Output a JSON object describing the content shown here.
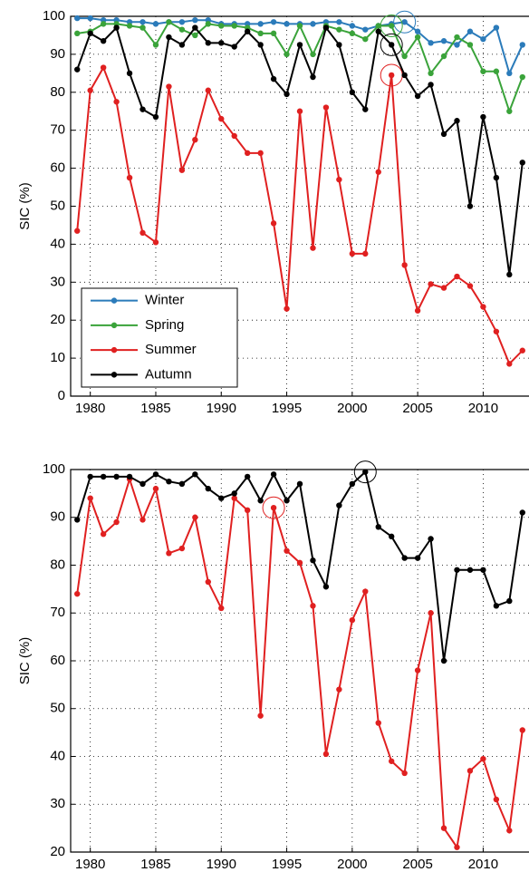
{
  "chart_data": [
    {
      "type": "line",
      "ylabel": "SIC (%)",
      "x": [
        1979,
        1980,
        1981,
        1982,
        1983,
        1984,
        1985,
        1986,
        1987,
        1988,
        1989,
        1990,
        1991,
        1992,
        1993,
        1994,
        1995,
        1996,
        1997,
        1998,
        1999,
        2000,
        2001,
        2002,
        2003,
        2004,
        2005,
        2006,
        2007,
        2008,
        2009,
        2010,
        2011,
        2012,
        2013
      ],
      "xlim": [
        1978.5,
        2013.5
      ],
      "xticks": [
        1980,
        1985,
        1990,
        1995,
        2000,
        2005,
        2010
      ],
      "ylim": [
        0,
        100
      ],
      "yticks": [
        0,
        10,
        20,
        30,
        40,
        50,
        60,
        70,
        80,
        90,
        100
      ],
      "grid": true,
      "legend": "lower left",
      "series": [
        {
          "name": "Winter",
          "color": "#2b7bba",
          "highlight": 2004,
          "values": [
            99.5,
            99.5,
            99,
            99,
            98.5,
            98.5,
            98,
            98.5,
            98.5,
            99,
            99,
            98,
            98,
            98,
            98,
            98.5,
            98,
            98,
            98,
            98.5,
            98.5,
            97.5,
            96.5,
            97.5,
            98,
            98.5,
            96,
            93,
            93.5,
            92.5,
            96,
            94,
            97,
            85,
            92.5
          ]
        },
        {
          "name": "Spring",
          "color": "#3aa33a",
          "highlight": 2003,
          "values": [
            95.5,
            96,
            98,
            98,
            97.5,
            97,
            92.5,
            98.5,
            96.5,
            95,
            98,
            97.5,
            97.5,
            97,
            95.5,
            95.5,
            90,
            97.5,
            90,
            97.5,
            96.5,
            95.5,
            94,
            97.5,
            97.5,
            89.5,
            94.5,
            85,
            89.5,
            94.5,
            92.5,
            85.5,
            85.5,
            75,
            84
          ]
        },
        {
          "name": "Summer",
          "color": "#e02020",
          "highlight": 2003,
          "values": [
            43.5,
            80.5,
            86.5,
            77.5,
            57.5,
            43,
            40.5,
            81.5,
            59.5,
            67.5,
            80.5,
            73,
            68.5,
            64,
            64,
            45.5,
            23,
            75,
            39,
            76,
            57,
            37.5,
            37.5,
            59,
            84.5,
            34.5,
            22.5,
            29.5,
            28.5,
            31.5,
            29,
            23.5,
            17,
            8.5,
            12
          ]
        },
        {
          "name": "Autumn",
          "color": "#000000",
          "highlight": 2003,
          "values": [
            86,
            95.5,
            93.5,
            97,
            85,
            75.5,
            73.5,
            94.5,
            92.5,
            97,
            93,
            93,
            92,
            96,
            92.5,
            83.5,
            79.5,
            92.5,
            84,
            97,
            92.5,
            80,
            75.5,
            96,
            92.5,
            84.5,
            79,
            82,
            69,
            72.5,
            50,
            73.5,
            57.5,
            32,
            61.5
          ]
        }
      ]
    },
    {
      "type": "line",
      "ylabel": "SIC (%)",
      "x": [
        1979,
        1980,
        1981,
        1982,
        1983,
        1984,
        1985,
        1986,
        1987,
        1988,
        1989,
        1990,
        1991,
        1992,
        1993,
        1994,
        1995,
        1996,
        1997,
        1998,
        1999,
        2000,
        2001,
        2002,
        2003,
        2004,
        2005,
        2006,
        2007,
        2008,
        2009,
        2010,
        2011,
        2012,
        2013
      ],
      "xlim": [
        1978.5,
        2013.5
      ],
      "xticks": [
        1980,
        1985,
        1990,
        1995,
        2000,
        2005,
        2010
      ],
      "ylim": [
        20,
        100
      ],
      "yticks": [
        20,
        30,
        40,
        50,
        60,
        70,
        80,
        90,
        100
      ],
      "grid": true,
      "series": [
        {
          "color": "#e02020",
          "highlight": 1994,
          "values": [
            74,
            94,
            86.5,
            89,
            98,
            89.5,
            96,
            82.5,
            83.5,
            90,
            76.5,
            71,
            94,
            91.5,
            48.5,
            92,
            83,
            80.5,
            71.5,
            40.5,
            54,
            68.5,
            74.5,
            47,
            39,
            36.5,
            58,
            70,
            25,
            21,
            37,
            39.5,
            31,
            24.5,
            45.5
          ]
        },
        {
          "color": "#000000",
          "highlight": 2001,
          "values": [
            89.5,
            98.5,
            98.5,
            98.5,
            98.5,
            97,
            99,
            97.5,
            97,
            99,
            96,
            94,
            95,
            98.5,
            93.5,
            99,
            93.5,
            97,
            81,
            75.5,
            92.5,
            97,
            99.5,
            88,
            86,
            81.5,
            81.5,
            85.5,
            60,
            79,
            79,
            79,
            71.5,
            72.5,
            91
          ]
        }
      ]
    }
  ]
}
